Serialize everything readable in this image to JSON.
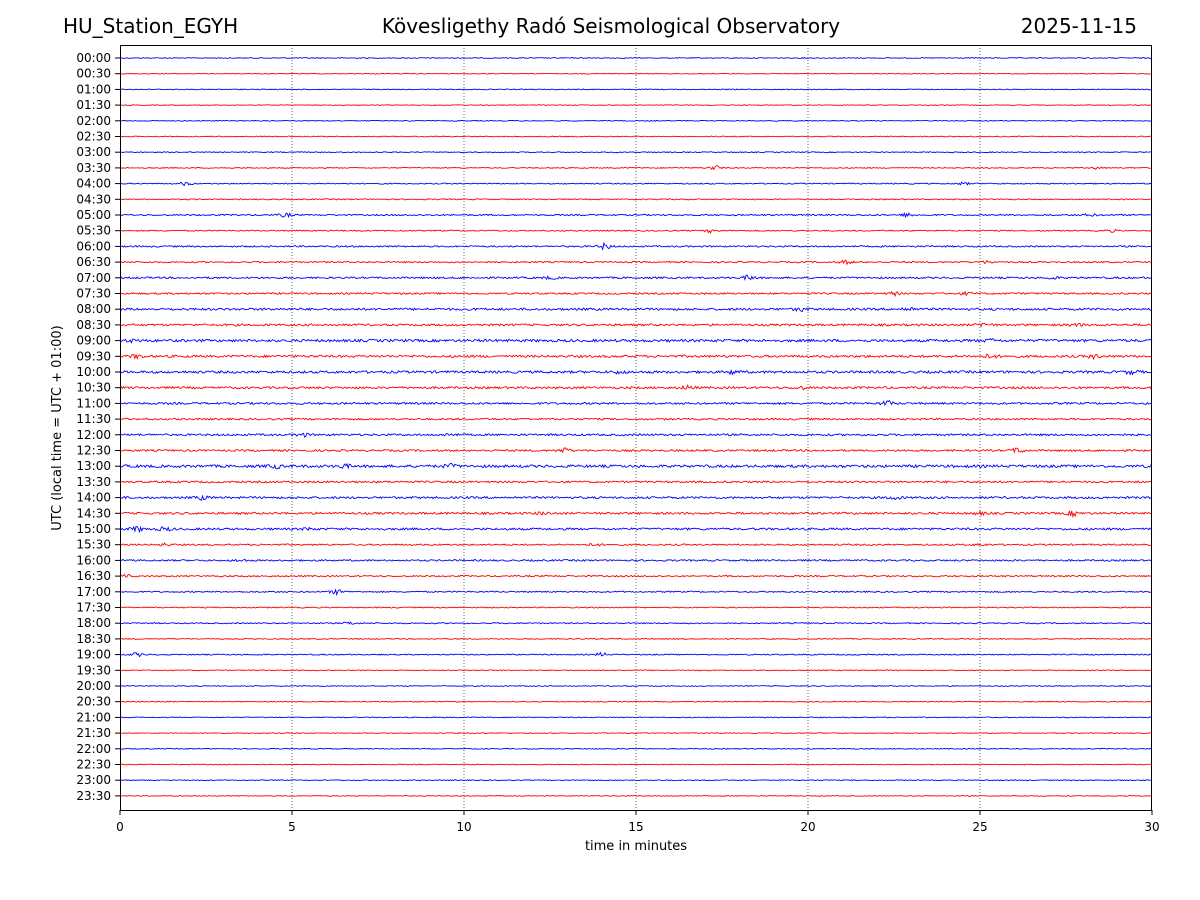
{
  "header": {
    "station": "HU_Station_EGYH",
    "title": "Kövesligethy Radó Seismological Observatory",
    "date": "2025-11-15"
  },
  "chart_data": {
    "type": "line",
    "subtype": "helicorder",
    "xlabel": "time in minutes",
    "ylabel": "UTC (local time = UTC + 01:00)",
    "xlim": [
      0,
      30
    ],
    "xticks": [
      0,
      5,
      10,
      15,
      20,
      25,
      30
    ],
    "x_gridlines": [
      5,
      10,
      15,
      20,
      25
    ],
    "grid": "vertical dotted",
    "trace_colors": [
      "#0000ff",
      "#ff0000"
    ],
    "rows": [
      {
        "label": "00:00",
        "amplitude": 0.8,
        "bursts": []
      },
      {
        "label": "00:30",
        "amplitude": 0.7,
        "bursts": []
      },
      {
        "label": "01:00",
        "amplitude": 0.8,
        "bursts": []
      },
      {
        "label": "01:30",
        "amplitude": 0.7,
        "bursts": []
      },
      {
        "label": "02:00",
        "amplitude": 0.8,
        "bursts": []
      },
      {
        "label": "02:30",
        "amplitude": 0.8,
        "bursts": []
      },
      {
        "label": "03:00",
        "amplitude": 0.9,
        "bursts": []
      },
      {
        "label": "03:30",
        "amplitude": 0.9,
        "bursts": [
          [
            17.3,
            4
          ],
          [
            28.4,
            2
          ]
        ]
      },
      {
        "label": "04:00",
        "amplitude": 1.0,
        "bursts": [
          [
            1.9,
            3
          ],
          [
            24.5,
            2
          ]
        ]
      },
      {
        "label": "04:30",
        "amplitude": 1.0,
        "bursts": []
      },
      {
        "label": "05:00",
        "amplitude": 1.3,
        "bursts": [
          [
            4.8,
            3
          ],
          [
            22.9,
            3
          ],
          [
            28.2,
            2
          ]
        ]
      },
      {
        "label": "05:30",
        "amplitude": 1.1,
        "bursts": [
          [
            17.2,
            3
          ],
          [
            28.8,
            2
          ]
        ]
      },
      {
        "label": "06:00",
        "amplitude": 1.4,
        "bursts": [
          [
            14.1,
            5
          ]
        ]
      },
      {
        "label": "06:30",
        "amplitude": 1.3,
        "bursts": [
          [
            21.1,
            3
          ],
          [
            25.2,
            2
          ]
        ]
      },
      {
        "label": "07:00",
        "amplitude": 1.6,
        "bursts": [
          [
            12.5,
            2
          ],
          [
            18.3,
            4
          ],
          [
            27.1,
            2
          ]
        ]
      },
      {
        "label": "07:30",
        "amplitude": 1.5,
        "bursts": [
          [
            22.5,
            3
          ],
          [
            24.6,
            2
          ]
        ]
      },
      {
        "label": "08:00",
        "amplitude": 2.0,
        "bursts": [
          [
            19.8,
            3
          ],
          [
            22.9,
            3
          ]
        ]
      },
      {
        "label": "08:30",
        "amplitude": 1.9,
        "bursts": [
          [
            25.1,
            3
          ],
          [
            27.8,
            2
          ]
        ]
      },
      {
        "label": "09:00",
        "amplitude": 2.3,
        "bursts": [
          [
            0.4,
            2
          ],
          [
            25.3,
            2
          ]
        ]
      },
      {
        "label": "09:30",
        "amplitude": 2.1,
        "bursts": [
          [
            0.5,
            3
          ],
          [
            25.3,
            3
          ],
          [
            28.3,
            3
          ]
        ]
      },
      {
        "label": "10:00",
        "amplitude": 2.2,
        "bursts": [
          [
            14.5,
            2
          ],
          [
            17.8,
            3
          ],
          [
            29.4,
            3
          ]
        ]
      },
      {
        "label": "10:30",
        "amplitude": 2.0,
        "bursts": [
          [
            16.5,
            3
          ],
          [
            19.8,
            2
          ]
        ]
      },
      {
        "label": "11:00",
        "amplitude": 1.8,
        "bursts": [
          [
            22.3,
            4
          ]
        ]
      },
      {
        "label": "11:30",
        "amplitude": 1.6,
        "bursts": []
      },
      {
        "label": "12:00",
        "amplitude": 1.8,
        "bursts": [
          [
            5.3,
            3
          ],
          [
            9.6,
            2
          ]
        ]
      },
      {
        "label": "12:30",
        "amplitude": 1.7,
        "bursts": [
          [
            12.9,
            4
          ],
          [
            26.1,
            4
          ]
        ]
      },
      {
        "label": "13:00",
        "amplitude": 2.4,
        "bursts": [
          [
            4.5,
            3
          ],
          [
            6.5,
            3
          ],
          [
            9.6,
            3
          ]
        ]
      },
      {
        "label": "13:30",
        "amplitude": 1.7,
        "bursts": []
      },
      {
        "label": "14:00",
        "amplitude": 1.9,
        "bursts": [
          [
            2.4,
            3
          ],
          [
            22.5,
            3
          ]
        ]
      },
      {
        "label": "14:30",
        "amplitude": 1.9,
        "bursts": [
          [
            12.3,
            2
          ],
          [
            25.0,
            2
          ],
          [
            27.7,
            4
          ]
        ]
      },
      {
        "label": "15:00",
        "amplitude": 1.9,
        "bursts": [
          [
            0.5,
            4
          ],
          [
            1.3,
            3
          ],
          [
            5.5,
            2
          ]
        ]
      },
      {
        "label": "15:30",
        "amplitude": 1.4,
        "bursts": [
          [
            1.3,
            2
          ],
          [
            13.8,
            2
          ],
          [
            25.0,
            2
          ]
        ]
      },
      {
        "label": "16:00",
        "amplitude": 1.5,
        "bursts": [
          [
            3.5,
            2
          ]
        ]
      },
      {
        "label": "16:30",
        "amplitude": 1.3,
        "bursts": [
          [
            0.2,
            2
          ]
        ]
      },
      {
        "label": "17:00",
        "amplitude": 1.2,
        "bursts": [
          [
            6.3,
            4
          ]
        ]
      },
      {
        "label": "17:30",
        "amplitude": 1.0,
        "bursts": []
      },
      {
        "label": "18:00",
        "amplitude": 1.1,
        "bursts": [
          [
            6.7,
            2
          ]
        ]
      },
      {
        "label": "18:30",
        "amplitude": 0.9,
        "bursts": []
      },
      {
        "label": "19:00",
        "amplitude": 1.0,
        "bursts": [
          [
            0.5,
            3
          ],
          [
            14.0,
            3
          ]
        ]
      },
      {
        "label": "19:30",
        "amplitude": 0.8,
        "bursts": []
      },
      {
        "label": "20:00",
        "amplitude": 0.8,
        "bursts": []
      },
      {
        "label": "20:30",
        "amplitude": 0.8,
        "bursts": []
      },
      {
        "label": "21:00",
        "amplitude": 0.8,
        "bursts": []
      },
      {
        "label": "21:30",
        "amplitude": 0.7,
        "bursts": []
      },
      {
        "label": "22:00",
        "amplitude": 0.8,
        "bursts": []
      },
      {
        "label": "22:30",
        "amplitude": 0.7,
        "bursts": []
      },
      {
        "label": "23:00",
        "amplitude": 0.8,
        "bursts": []
      },
      {
        "label": "23:30",
        "amplitude": 0.7,
        "bursts": []
      }
    ]
  }
}
